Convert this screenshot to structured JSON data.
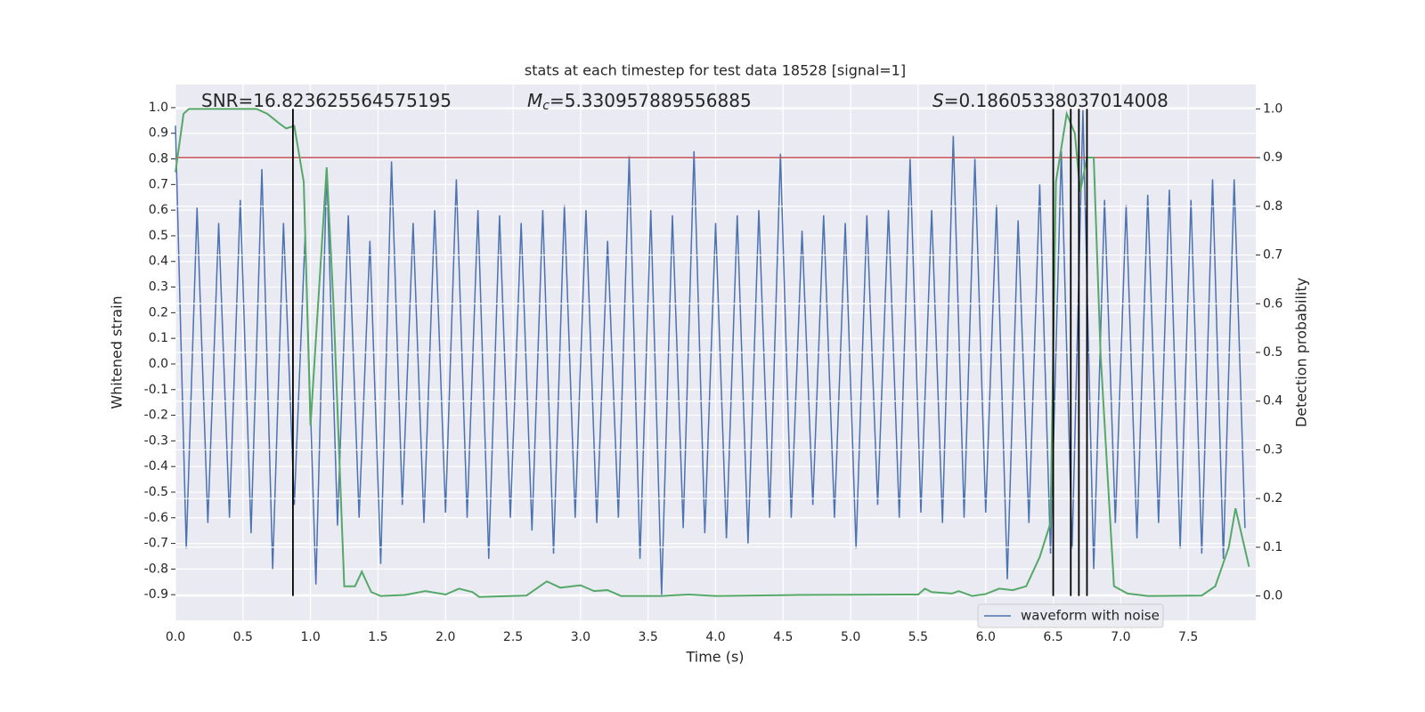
{
  "chart_data": {
    "type": "line",
    "title": "stats at each timestep for test data 18528 [signal=1]",
    "xlabel": "Time (s)",
    "ylabel": "Whitened strain",
    "y2label": "Detection probability",
    "annotations": [
      {
        "text": "SNR=16.823625564575195"
      },
      {
        "symbol": "M",
        "subscript": "c",
        "text": "=5.330957889556885"
      },
      {
        "symbol": "S",
        "text": "=0.18605338037014008"
      }
    ],
    "xlim": [
      0,
      8.0
    ],
    "ylim": [
      -1.0,
      1.09
    ],
    "y2lim": [
      -0.05,
      1.05
    ],
    "xticks": [
      {
        "value": 0,
        "label": "0.0"
      },
      0.5,
      {
        "value": 1,
        "label": "1.0"
      },
      1.5,
      {
        "value": 2,
        "label": "2.0"
      },
      2.5,
      {
        "value": 3,
        "label": "3.0"
      },
      3.5,
      {
        "value": 4,
        "label": "4.0"
      },
      4.5,
      {
        "value": 5,
        "label": "5.0"
      },
      5.5,
      {
        "value": 6,
        "label": "6.0"
      },
      6.5,
      {
        "value": 7,
        "label": "7.0"
      },
      7.5
    ],
    "yticks": [
      -0.9,
      -0.8,
      -0.7,
      -0.6,
      -0.5,
      -0.4,
      -0.3,
      -0.2,
      -0.1,
      {
        "value": 0,
        "label": "0.0"
      },
      0.1,
      0.2,
      0.3,
      0.4,
      0.5,
      0.6,
      0.7,
      0.8,
      0.9,
      {
        "value": 1,
        "label": "1.0"
      }
    ],
    "y2ticks": [
      {
        "value": 0,
        "label": "0.0"
      },
      0.1,
      0.2,
      0.3,
      0.4,
      0.5,
      0.6,
      0.7,
      0.8,
      0.9,
      {
        "value": 1,
        "label": "1.0"
      }
    ],
    "grid": true,
    "legend_loc": "lower right",
    "threshold": {
      "value": 0.9,
      "axis": "y2",
      "color": "#c44e52"
    },
    "detections": {
      "x": [
        0.87,
        6.5,
        6.63,
        6.69,
        6.75
      ],
      "color": "#000000"
    },
    "series": [
      {
        "name": "waveform with noise",
        "color": "#4c72b0",
        "x": [
          0.0,
          0.08,
          0.16,
          0.24,
          0.32,
          0.4,
          0.48,
          0.56,
          0.64,
          0.72,
          0.8,
          0.88,
          0.96,
          1.04,
          1.12,
          1.2,
          1.28,
          1.36,
          1.44,
          1.52,
          1.6,
          1.68,
          1.76,
          1.84,
          1.92,
          2.0,
          2.08,
          2.16,
          2.24,
          2.32,
          2.4,
          2.48,
          2.56,
          2.64,
          2.72,
          2.8,
          2.88,
          2.96,
          3.04,
          3.12,
          3.2,
          3.28,
          3.36,
          3.44,
          3.52,
          3.6,
          3.68,
          3.76,
          3.84,
          3.92,
          4.0,
          4.08,
          4.16,
          4.24,
          4.32,
          4.4,
          4.48,
          4.56,
          4.64,
          4.72,
          4.8,
          4.88,
          4.96,
          5.04,
          5.12,
          5.2,
          5.28,
          5.36,
          5.44,
          5.52,
          5.6,
          5.68,
          5.76,
          5.84,
          5.92,
          6.0,
          6.08,
          6.16,
          6.24,
          6.32,
          6.4,
          6.48,
          6.56,
          6.64,
          6.72,
          6.8,
          6.88,
          6.96,
          7.04,
          7.12,
          7.2,
          7.28,
          7.36,
          7.44,
          7.52,
          7.6,
          7.68,
          7.76,
          7.84,
          7.92
        ],
        "values": [
          0.93,
          -0.72,
          0.61,
          -0.62,
          0.55,
          -0.6,
          0.64,
          -0.66,
          0.76,
          -0.8,
          0.55,
          -0.55,
          0.5,
          -0.86,
          0.76,
          -0.63,
          0.58,
          -0.6,
          0.48,
          -0.78,
          0.79,
          -0.55,
          0.55,
          -0.62,
          0.6,
          -0.58,
          0.72,
          -0.6,
          0.6,
          -0.76,
          0.58,
          -0.6,
          0.55,
          -0.65,
          0.6,
          -0.74,
          0.62,
          -0.6,
          0.6,
          -0.62,
          0.48,
          -0.6,
          0.81,
          -0.76,
          0.6,
          -0.9,
          0.58,
          -0.64,
          0.83,
          -0.66,
          0.55,
          -0.68,
          0.58,
          -0.7,
          0.6,
          -0.6,
          0.82,
          -0.6,
          0.52,
          -0.55,
          0.58,
          -0.6,
          0.55,
          -0.72,
          0.58,
          -0.55,
          0.6,
          -0.6,
          0.8,
          -0.58,
          0.6,
          -0.62,
          0.89,
          -0.6,
          0.8,
          -0.58,
          0.62,
          -0.84,
          0.56,
          -0.62,
          0.7,
          -0.74,
          0.83,
          -0.72,
          0.99,
          -0.8,
          0.64,
          -0.62,
          0.62,
          -0.68,
          0.66,
          -0.62,
          0.68,
          -0.72,
          0.64,
          -0.74,
          0.72,
          -0.76,
          0.72,
          -0.64
        ]
      },
      {
        "color": "#55a868",
        "axis": "y2",
        "x": [
          0.0,
          0.06,
          0.1,
          0.6,
          0.68,
          0.77,
          0.82,
          0.88,
          0.95,
          1.0,
          1.12,
          1.17,
          1.25,
          1.33,
          1.38,
          1.45,
          1.52,
          1.7,
          1.85,
          2.0,
          2.1,
          2.2,
          2.25,
          2.6,
          2.75,
          2.85,
          3.0,
          3.1,
          3.2,
          3.3,
          3.6,
          3.8,
          4.0,
          4.6,
          5.5,
          5.55,
          5.6,
          5.75,
          5.8,
          5.9,
          6.0,
          6.1,
          6.2,
          6.3,
          6.4,
          6.48,
          6.52,
          6.6,
          6.66,
          6.7,
          6.75,
          6.8,
          6.85,
          6.95,
          7.05,
          7.2,
          7.6,
          7.7,
          7.8,
          7.85,
          7.9,
          7.95
        ],
        "values": [
          0.87,
          0.99,
          1.0,
          1.0,
          0.99,
          0.97,
          0.96,
          0.965,
          0.85,
          0.35,
          0.88,
          0.6,
          0.02,
          0.02,
          0.05,
          0.008,
          0.0,
          0.002,
          0.01,
          0.003,
          0.015,
          0.008,
          -0.002,
          0.001,
          0.03,
          0.017,
          0.022,
          0.01,
          0.012,
          0.0,
          0.0,
          0.003,
          0.0,
          0.002,
          0.003,
          0.015,
          0.008,
          0.005,
          0.01,
          0.0,
          0.004,
          0.015,
          0.012,
          0.02,
          0.08,
          0.15,
          0.85,
          0.99,
          0.95,
          0.83,
          0.9,
          0.9,
          0.5,
          0.02,
          0.005,
          0.0,
          0.001,
          0.02,
          0.1,
          0.18,
          0.12,
          0.06
        ]
      }
    ]
  }
}
